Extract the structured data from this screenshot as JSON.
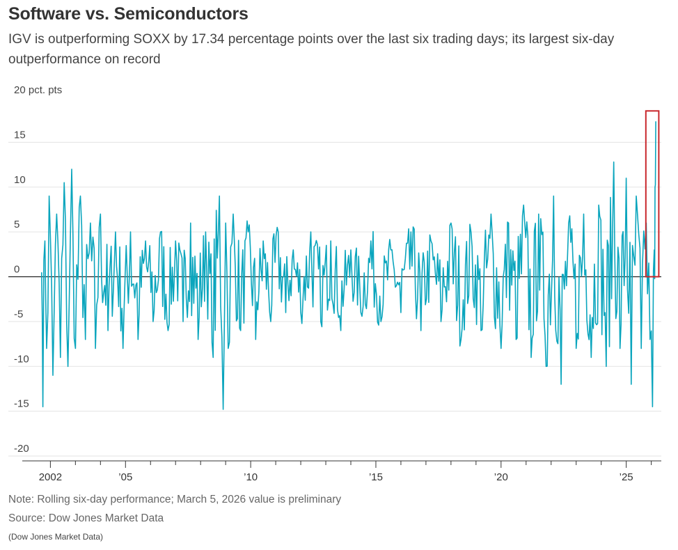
{
  "title": "Software vs. Semiconductors",
  "subtitle": "IGV is outperforming SOXX by 17.34 percentage points over the last six trading days; its largest six-day outperformance on record",
  "note": "Note: Rolling six-day performance; March 5, 2026 value is preliminary",
  "source": "Source: Dow Jones Market Data",
  "credit": "(Dow Jones Market Data)",
  "colors": {
    "series": "#0aa5bd",
    "highlight_box": "#c8262b",
    "grid": "#e3e3e3",
    "zero_line": "#222222",
    "text": "#333333"
  },
  "chart_data": {
    "type": "line",
    "title": "Software vs. Semiconductors",
    "y_unit_label": "20 pct. pts",
    "ylim": [
      -20,
      20
    ],
    "y_ticks": [
      -20,
      -15,
      -10,
      -5,
      0,
      5,
      10,
      15,
      20
    ],
    "y_tick_labels": [
      "-20",
      "-15",
      "-10",
      "-5",
      "0",
      "5",
      "10",
      "15",
      "20 pct. pts"
    ],
    "xlim": [
      2001.6,
      2026.4
    ],
    "x_ticks": [
      2002,
      2005,
      2010,
      2015,
      2020,
      2025
    ],
    "x_tick_labels": [
      "2002",
      "’05",
      "’10",
      "’15",
      "’20",
      "’25"
    ],
    "grid": "horizontal",
    "series": [
      {
        "x": [
          2001.65,
          2001.7,
          2001.78,
          2001.85,
          2001.95,
          2002.1,
          2002.25,
          2002.4,
          2002.55,
          2002.7,
          2002.85,
          2003.0,
          2003.2,
          2003.4,
          2003.6,
          2003.8,
          2004.0,
          2004.3,
          2004.6,
          2004.9,
          2005.2,
          2005.5,
          2005.8,
          2006.1,
          2006.4,
          2006.7,
          2007.0,
          2007.3,
          2007.6,
          2007.9,
          2008.2,
          2008.5,
          2008.75,
          2008.9,
          2009.0,
          2009.1,
          2009.3,
          2009.6,
          2009.9,
          2010.2,
          2010.5,
          2010.8,
          2011.1,
          2011.4,
          2011.7,
          2012.0,
          2012.4,
          2012.8,
          2013.2,
          2013.6,
          2014.0,
          2014.4,
          2014.8,
          2015.2,
          2015.6,
          2016.0,
          2016.4,
          2016.8,
          2017.2,
          2017.6,
          2018.0,
          2018.4,
          2018.8,
          2019.2,
          2019.6,
          2020.0,
          2020.3,
          2020.6,
          2020.9,
          2021.2,
          2021.5,
          2021.8,
          2022.1,
          2022.4,
          2022.7,
          2023.0,
          2023.3,
          2023.6,
          2023.9,
          2024.2,
          2024.5,
          2024.75,
          2025.0,
          2025.2,
          2025.4,
          2025.6,
          2025.8,
          2025.95,
          2026.05,
          2026.12,
          2026.15,
          2026.18
        ],
        "values": [
          0.5,
          -14.5,
          4,
          -8,
          9,
          -11,
          7,
          -9,
          10.5,
          -10,
          12,
          -8,
          9,
          -7,
          6,
          -8,
          7,
          -6,
          5,
          -8,
          5,
          -7,
          4,
          -5,
          5,
          -6,
          4,
          -5,
          6,
          -7,
          5,
          -9,
          9,
          -14.8,
          6,
          -8,
          7,
          -6,
          5,
          -7,
          4,
          -5,
          5,
          -4,
          3,
          -4,
          5,
          -5,
          4,
          -6,
          3,
          -4,
          4,
          -5,
          3,
          -4,
          5,
          -6,
          4,
          -5,
          6,
          -7,
          5,
          -6,
          7,
          -8,
          6,
          -7,
          8,
          -9,
          7,
          -10,
          9,
          -12,
          6,
          -8,
          7,
          -9,
          8,
          -10,
          12.8,
          -8,
          11,
          -12,
          9,
          -8,
          6,
          -7,
          -14.5,
          3,
          10,
          17.34
        ]
      }
    ],
    "annotations": [
      {
        "type": "highlight-box",
        "covers": "latest value",
        "x_from": 2025.95,
        "x_to": 2026.3,
        "y_from": 0,
        "y_to": 18.5
      }
    ]
  }
}
